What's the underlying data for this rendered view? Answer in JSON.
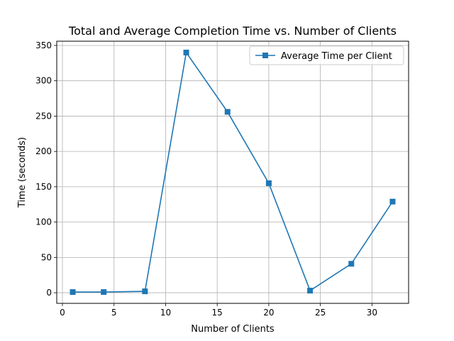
{
  "chart_data": {
    "type": "line",
    "title": "Total and Average Completion Time vs. Number of Clients",
    "xlabel": "Number of Clients",
    "ylabel": "Time (seconds)",
    "xlim": [
      -0.55,
      33.55
    ],
    "ylim": [
      -15.0,
      356.0
    ],
    "xticks": [
      0,
      5,
      10,
      15,
      20,
      25,
      30
    ],
    "yticks": [
      0,
      50,
      100,
      150,
      200,
      250,
      300,
      350
    ],
    "grid": true,
    "legend_position": "top-right",
    "series": [
      {
        "name": "Average Time per Client",
        "color": "#1f77b4",
        "marker": "square",
        "x": [
          1,
          4,
          8,
          12,
          16,
          20,
          24,
          28,
          32
        ],
        "y": [
          1,
          1,
          2,
          340,
          256,
          155,
          3,
          41,
          129
        ]
      }
    ]
  }
}
